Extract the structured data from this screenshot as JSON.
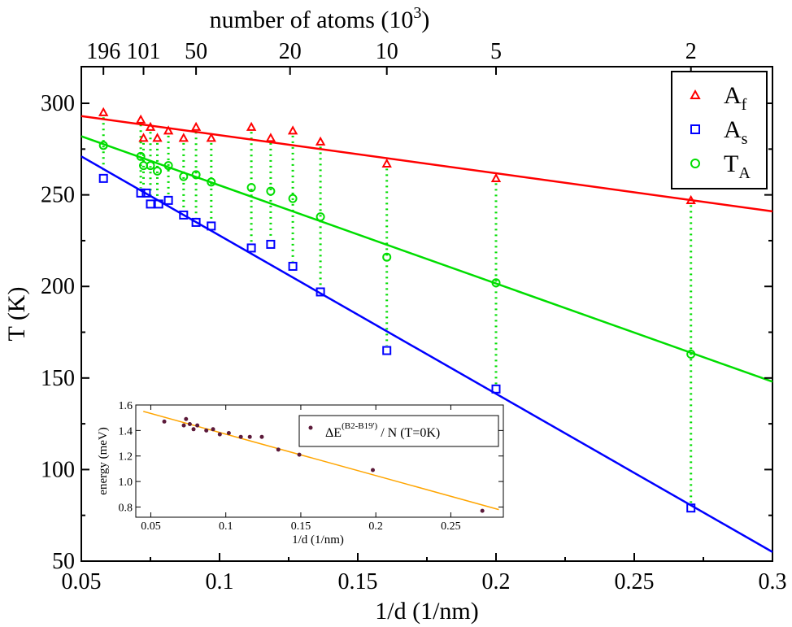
{
  "chart_data": [
    {
      "type": "scatter",
      "xlabel": "1/d  (1/nm)",
      "ylabel": "T (K)",
      "xlim": [
        0.05,
        0.3
      ],
      "ylim": [
        50,
        320
      ],
      "xticks": [
        "0.05",
        "0.1",
        "0.15",
        "0.2",
        "0.25",
        "0.3"
      ],
      "yticks": [
        "50",
        "100",
        "150",
        "200",
        "250",
        "300"
      ],
      "top_axis": {
        "label_main": "number of atoms (10",
        "label_sup": "3",
        "label_close": ")",
        "ticks": [
          {
            "label": "196",
            "x": 0.058
          },
          {
            "label": "101",
            "x": 0.0725
          },
          {
            "label": "50",
            "x": 0.0915
          },
          {
            "label": "20",
            "x": 0.1255
          },
          {
            "label": "10",
            "x": 0.1605
          },
          {
            "label": "5",
            "x": 0.2
          },
          {
            "label": "2",
            "x": 0.2705
          }
        ]
      },
      "legend_position": "top-right",
      "series": [
        {
          "name": "A",
          "sub": "f",
          "marker": "triangle",
          "color": "#ff0000",
          "x": [
            0.058,
            0.0715,
            0.0725,
            0.075,
            0.0775,
            0.0815,
            0.087,
            0.0915,
            0.097,
            0.1115,
            0.1185,
            0.1265,
            0.1365,
            0.1605,
            0.2,
            0.2705
          ],
          "y": [
            295,
            291,
            281,
            287,
            281,
            285,
            281,
            287,
            281,
            287,
            281,
            285,
            279,
            267,
            259,
            247
          ],
          "fit": [
            [
              0.05,
              293
            ],
            [
              0.3,
              241
            ]
          ]
        },
        {
          "name": "A",
          "sub": "s",
          "marker": "square",
          "color": "#0000ff",
          "x": [
            0.058,
            0.0715,
            0.0735,
            0.075,
            0.078,
            0.0815,
            0.087,
            0.0915,
            0.097,
            0.1115,
            0.1185,
            0.1265,
            0.1365,
            0.1605,
            0.2,
            0.2705
          ],
          "y": [
            259,
            251,
            251,
            245,
            245,
            247,
            239,
            235,
            233,
            221,
            223,
            211,
            197,
            165,
            144,
            79
          ],
          "fit": [
            [
              0.05,
              271
            ],
            [
              0.3,
              55
            ]
          ]
        },
        {
          "name": "T",
          "sub": "A",
          "marker": "circle",
          "color": "#00dd00",
          "x": [
            0.058,
            0.0715,
            0.0725,
            0.075,
            0.0775,
            0.0815,
            0.087,
            0.0915,
            0.097,
            0.1115,
            0.1185,
            0.1265,
            0.1365,
            0.1605,
            0.2,
            0.2705
          ],
          "y": [
            277,
            271,
            266,
            266,
            263,
            266,
            260,
            261,
            257,
            254,
            252,
            248,
            238,
            216,
            202,
            163
          ],
          "fit": [
            [
              0.05,
              282
            ],
            [
              0.3,
              148
            ]
          ]
        }
      ],
      "connectors_color": "#00dd00"
    },
    {
      "type": "scatter",
      "xlabel": "1/d (1/nm)",
      "ylabel": "energy (meV)",
      "xlim": [
        0.04,
        0.285
      ],
      "ylim": [
        0.72,
        1.6
      ],
      "xticks": [
        "0.05",
        "0.1",
        "0.15",
        "0.2",
        "0.25"
      ],
      "yticks": [
        "0.8",
        "1.0",
        "1.2",
        "1.4",
        "1.6"
      ],
      "legend_position": "top-right",
      "legend": {
        "main": "ΔE",
        "sup": "(B2-B19')",
        "rest": " / N  (T=0K)"
      },
      "series": [
        {
          "marker": "dot",
          "color": "#5c1a3a",
          "x": [
            0.059,
            0.072,
            0.0735,
            0.076,
            0.0785,
            0.081,
            0.087,
            0.0915,
            0.096,
            0.102,
            0.11,
            0.116,
            0.124,
            0.135,
            0.149,
            0.198,
            0.271
          ],
          "y": [
            1.47,
            1.44,
            1.49,
            1.45,
            1.41,
            1.44,
            1.4,
            1.41,
            1.37,
            1.38,
            1.35,
            1.35,
            1.35,
            1.25,
            1.21,
            1.09,
            0.77
          ],
          "fit": [
            [
              0.045,
              1.55
            ],
            [
              0.282,
              0.78
            ]
          ],
          "fit_color": "#ffa500"
        }
      ]
    }
  ]
}
